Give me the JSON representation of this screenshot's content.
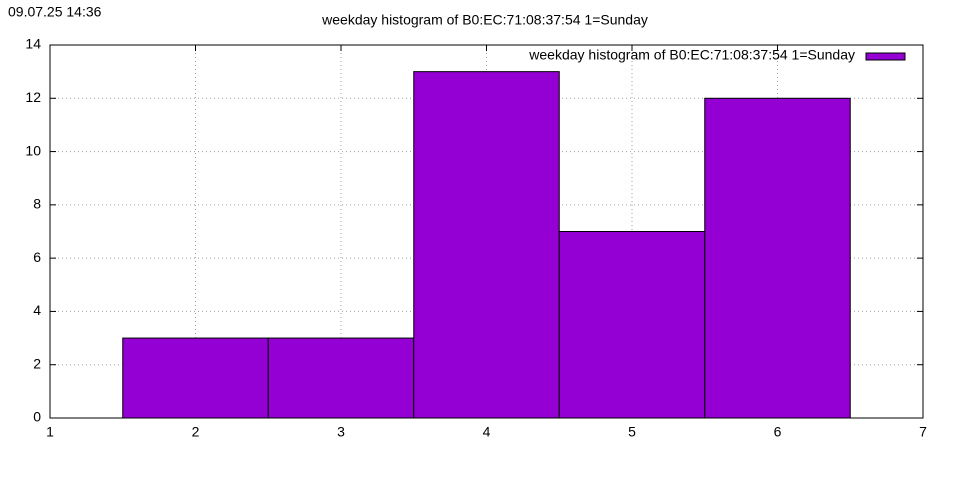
{
  "timestamp": "09.07.25 14:36",
  "chart_data": {
    "type": "histogram",
    "title": "weekday histogram of B0:EC:71:08:37:54 1=Sunday",
    "bins": [
      1.5,
      2.5,
      3.5,
      4.5,
      5.5,
      6.5
    ],
    "series": [
      {
        "name": "weekday histogram of B0:EC:71:08:37:54 1=Sunday",
        "color": "#9400d3",
        "values": [
          3,
          3,
          13,
          7,
          12
        ]
      }
    ],
    "xlim": [
      1,
      7
    ],
    "xticks": [
      1,
      2,
      3,
      4,
      5,
      6,
      7
    ],
    "ylim": [
      0,
      14
    ],
    "yticks": [
      0,
      2,
      4,
      6,
      8,
      10,
      12,
      14
    ],
    "grid": true,
    "legend_position": "top right"
  }
}
